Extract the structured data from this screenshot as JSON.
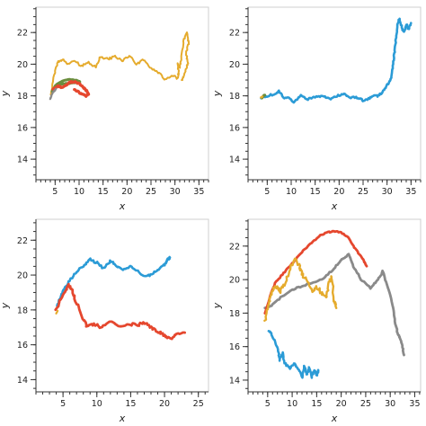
{
  "chart_data": [
    {
      "type": "line",
      "xlabel": "x",
      "ylabel": "y",
      "xlim": [
        1,
        37
      ],
      "ylim": [
        12.7,
        23.6
      ],
      "xticks": [
        5,
        10,
        15,
        20,
        25,
        30,
        35
      ],
      "yticks": [
        14,
        16,
        18,
        20,
        22
      ],
      "series": [
        {
          "color": "#e5ab2d",
          "width": 2.0,
          "jitter": 0.15,
          "x": [
            4.2,
            4.8,
            5.5,
            6.5,
            7.5,
            9,
            10.5,
            12,
            13.5,
            14.5,
            16,
            17.5,
            19,
            20.5,
            22,
            23.5,
            25,
            26.5,
            28,
            29.5,
            30.5,
            30.8,
            30.5,
            31,
            31.3,
            31.8,
            32.5,
            32.8,
            32.3,
            32.7,
            32.3,
            31.8,
            31.4
          ],
          "y": [
            18.1,
            19.3,
            20.1,
            20.3,
            20.0,
            20.2,
            19.9,
            20.1,
            19.8,
            20.5,
            20.3,
            20.5,
            20.2,
            20.5,
            20.0,
            20.3,
            19.7,
            19.5,
            19.0,
            19.3,
            19.1,
            19.5,
            20.0,
            19.8,
            20.3,
            21.5,
            22.0,
            21.3,
            20.7,
            20.1,
            19.7,
            19.2,
            19.0
          ]
        },
        {
          "color": "#6b8e3e",
          "width": 3.0,
          "jitter": 0.05,
          "x": [
            4.4,
            5.2,
            6.5,
            7.8,
            9.2,
            10.2,
            9.4,
            8.0,
            6.5,
            5.4,
            4.7
          ],
          "y": [
            18.3,
            18.7,
            18.95,
            19.05,
            19.0,
            18.9,
            18.85,
            18.8,
            18.75,
            18.6,
            18.4
          ]
        },
        {
          "color": "#e5472e",
          "width": 3.2,
          "jitter": 0.08,
          "x": [
            4.6,
            5.0,
            5.6,
            6.3,
            7.0,
            7.8,
            8.6,
            9.5,
            10.3,
            11.0,
            11.6,
            12.0,
            11.4,
            10.6,
            9.8,
            9.0
          ],
          "y": [
            18.4,
            18.5,
            18.6,
            18.55,
            18.6,
            18.8,
            18.9,
            18.85,
            18.7,
            18.5,
            18.3,
            18.1,
            18.0,
            18.1,
            18.25,
            18.4
          ]
        },
        {
          "color": "#8a8a8a",
          "width": 2.2,
          "jitter": 0.05,
          "x": [
            4.0,
            4.2,
            4.5,
            4.8,
            5.2
          ],
          "y": [
            17.8,
            18.0,
            18.2,
            18.3,
            18.45
          ]
        }
      ]
    },
    {
      "type": "line",
      "xlabel": "x",
      "ylabel": "y",
      "xlim": [
        1,
        37
      ],
      "ylim": [
        12.7,
        23.6
      ],
      "xticks": [
        5,
        10,
        15,
        20,
        25,
        30,
        35
      ],
      "yticks": [
        14,
        16,
        18,
        20,
        22
      ],
      "series": [
        {
          "color": "#2b9bd6",
          "width": 2.6,
          "jitter": 0.12,
          "x": [
            3.8,
            5,
            6.5,
            7.5,
            8.5,
            9.5,
            10.5,
            12,
            13.5,
            15,
            16.5,
            18,
            19.5,
            21,
            22.5,
            24,
            25,
            26,
            27,
            28,
            29,
            29.8,
            30.5,
            31,
            31.2,
            31.6,
            31.8,
            32.2,
            32.6,
            33.0,
            33.5,
            34,
            34.5,
            35
          ],
          "y": [
            17.9,
            18.0,
            18.1,
            18.3,
            17.8,
            17.9,
            17.6,
            18.0,
            17.8,
            17.9,
            18.0,
            17.8,
            18.0,
            18.1,
            17.9,
            17.9,
            17.7,
            17.8,
            18.0,
            18.0,
            18.2,
            18.6,
            18.9,
            19.3,
            20.0,
            20.8,
            21.5,
            22.5,
            22.9,
            22.4,
            22.0,
            22.5,
            22.2,
            22.6
          ]
        },
        {
          "color": "#6b8e3e",
          "width": 3.0,
          "jitter": 0.03,
          "x": [
            3.9,
            4.2,
            4.5
          ],
          "y": [
            17.85,
            18.0,
            18.05
          ]
        },
        {
          "color": "#e5ab2d",
          "width": 2.4,
          "jitter": 0.02,
          "x": [
            3.7,
            4.0
          ],
          "y": [
            17.9,
            17.95
          ]
        }
      ]
    },
    {
      "type": "line",
      "xlabel": "x",
      "ylabel": "y",
      "xlim": [
        1,
        26.5
      ],
      "ylim": [
        13.3,
        23.2
      ],
      "xticks": [
        5,
        10,
        15,
        20,
        25
      ],
      "yticks": [
        14,
        16,
        18,
        20,
        22
      ],
      "series": [
        {
          "color": "#2b9bd6",
          "width": 2.6,
          "jitter": 0.12,
          "x": [
            4.2,
            4.6,
            5.2,
            6,
            7,
            8,
            9,
            10,
            11,
            12,
            13,
            14,
            15,
            16,
            17,
            18,
            19,
            20,
            20.5,
            20.8
          ],
          "y": [
            18.2,
            18.7,
            19.2,
            19.7,
            20.2,
            20.5,
            20.9,
            20.7,
            20.4,
            20.8,
            20.5,
            20.3,
            20.5,
            20.2,
            19.9,
            20.0,
            20.3,
            20.6,
            20.9,
            21.0
          ]
        },
        {
          "color": "#e5472e",
          "width": 2.8,
          "jitter": 0.16,
          "x": [
            4.0,
            4.5,
            5.2,
            5.8,
            6.3,
            7,
            7.8,
            8.5,
            9.5,
            10.5,
            12,
            13.5,
            15,
            16,
            17,
            18,
            19,
            20,
            21,
            22,
            23
          ],
          "y": [
            18.0,
            18.5,
            19.0,
            19.4,
            19.1,
            18.4,
            17.6,
            17.1,
            17.2,
            17.0,
            17.3,
            17.0,
            17.2,
            17.1,
            17.3,
            17.0,
            16.8,
            16.5,
            16.4,
            16.6,
            16.7
          ]
        },
        {
          "color": "#e5ab2d",
          "width": 2.2,
          "jitter": 0.02,
          "x": [
            4.0,
            4.2
          ],
          "y": [
            17.8,
            17.95
          ]
        }
      ]
    },
    {
      "type": "line",
      "xlabel": "x",
      "ylabel": "y",
      "xlim": [
        1,
        36.2
      ],
      "ylim": [
        13.3,
        23.6
      ],
      "xticks": [
        5,
        10,
        15,
        20,
        25,
        30,
        35
      ],
      "yticks": [
        14,
        16,
        18,
        20,
        22
      ],
      "series": [
        {
          "color": "#8a8a8a",
          "width": 2.8,
          "jitter": 0.1,
          "x": [
            4.5,
            6,
            8,
            10,
            12,
            14,
            16,
            18,
            19.5,
            20.5,
            21.5,
            22.5,
            24,
            26,
            27.5,
            28.5,
            29.5,
            30.5,
            31,
            31.5,
            32,
            32.5,
            32.8
          ],
          "y": [
            18.3,
            18.5,
            19.0,
            19.4,
            19.6,
            19.8,
            20.0,
            20.5,
            21.0,
            21.3,
            21.5,
            20.8,
            20.0,
            19.5,
            20.0,
            20.5,
            19.5,
            18.5,
            17.5,
            16.8,
            16.5,
            16.0,
            15.5
          ]
        },
        {
          "color": "#e5472e",
          "width": 2.8,
          "jitter": 0.07,
          "x": [
            4.5,
            5.5,
            6.5,
            8,
            9.5,
            11,
            12.5,
            14,
            15.5,
            17,
            18.5,
            20,
            21.5,
            22.5,
            23.5,
            24.5,
            25.2
          ],
          "y": [
            18.0,
            19.0,
            19.8,
            20.3,
            20.8,
            21.3,
            21.8,
            22.2,
            22.6,
            22.8,
            22.9,
            22.8,
            22.5,
            22.0,
            21.6,
            21.2,
            20.8
          ]
        },
        {
          "color": "#2b9bd6",
          "width": 2.6,
          "jitter": 0.15,
          "x": [
            5.3,
            6,
            7,
            7.5,
            8,
            8.5,
            9.5,
            10.5,
            11.5,
            12,
            12.5,
            13,
            13.5,
            14,
            14.5,
            15,
            15.3
          ],
          "y": [
            17.0,
            16.5,
            16.0,
            15.2,
            15.6,
            15.0,
            14.7,
            15.0,
            14.6,
            14.2,
            14.8,
            14.3,
            14.7,
            14.2,
            14.6,
            14.3,
            14.6
          ]
        },
        {
          "color": "#e5ab2d",
          "width": 2.4,
          "jitter": 0.22,
          "x": [
            4.5,
            5,
            5.5,
            6,
            6.5,
            7.5,
            8.5,
            9.5,
            10.5,
            11.5,
            12,
            13,
            14,
            15,
            16,
            17,
            17.5,
            18,
            18.5,
            19
          ],
          "y": [
            17.5,
            18.4,
            19.0,
            19.4,
            19.6,
            19.3,
            19.7,
            20.6,
            21.3,
            20.8,
            20.3,
            20.0,
            19.3,
            19.6,
            19.2,
            19.0,
            19.7,
            20.2,
            18.8,
            18.3
          ]
        }
      ]
    }
  ]
}
